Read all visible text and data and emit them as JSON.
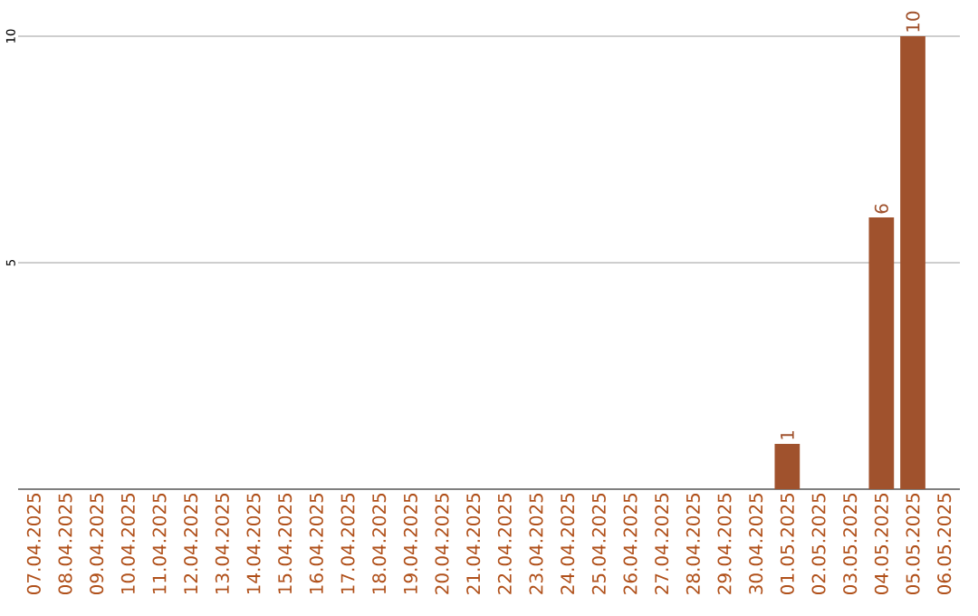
{
  "chart_data": {
    "type": "bar",
    "categories": [
      "07.04.2025",
      "08.04.2025",
      "09.04.2025",
      "10.04.2025",
      "11.04.2025",
      "12.04.2025",
      "13.04.2025",
      "14.04.2025",
      "15.04.2025",
      "16.04.2025",
      "17.04.2025",
      "18.04.2025",
      "19.04.2025",
      "20.04.2025",
      "21.04.2025",
      "22.04.2025",
      "23.04.2025",
      "24.04.2025",
      "25.04.2025",
      "26.04.2025",
      "27.04.2025",
      "28.04.2025",
      "29.04.2025",
      "30.04.2025",
      "01.05.2025",
      "02.05.2025",
      "03.05.2025",
      "04.05.2025",
      "05.05.2025",
      "06.05.2025"
    ],
    "values": [
      0,
      0,
      0,
      0,
      0,
      0,
      0,
      0,
      0,
      0,
      0,
      0,
      0,
      0,
      0,
      0,
      0,
      0,
      0,
      0,
      0,
      0,
      0,
      0,
      1,
      0,
      0,
      6,
      10,
      0
    ],
    "value_labels": [
      null,
      null,
      null,
      null,
      null,
      null,
      null,
      null,
      null,
      null,
      null,
      null,
      null,
      null,
      null,
      null,
      null,
      null,
      null,
      null,
      null,
      null,
      null,
      null,
      "1",
      null,
      null,
      "6",
      "10",
      null
    ],
    "color": "#a0522d",
    "ylim": [
      0,
      10
    ],
    "yticks": [
      5,
      10
    ],
    "grid": "y"
  }
}
